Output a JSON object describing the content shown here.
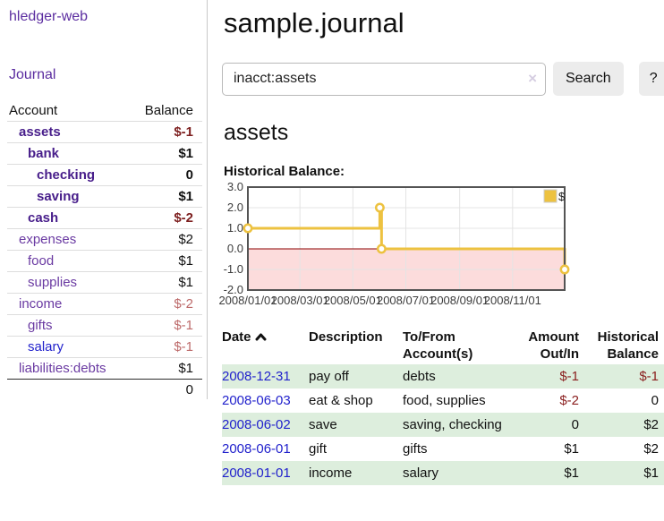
{
  "sidebar": {
    "brand": "hledger-web",
    "nav": {
      "journal_label": "Journal"
    },
    "accounts_table": {
      "headers": {
        "account": "Account",
        "balance": "Balance"
      },
      "rows": [
        {
          "name": "assets",
          "balance": "$-1",
          "indent": 1,
          "bold": true,
          "balance_style": "neg-strong"
        },
        {
          "name": "bank",
          "balance": "$1",
          "indent": 2,
          "bold": true,
          "balance_style": "pos"
        },
        {
          "name": "checking",
          "balance": "0",
          "indent": 3,
          "bold": true,
          "balance_style": "pos"
        },
        {
          "name": "saving",
          "balance": "$1",
          "indent": 3,
          "bold": true,
          "balance_style": "pos"
        },
        {
          "name": "cash",
          "balance": "$-2",
          "indent": 2,
          "bold": true,
          "balance_style": "neg-strong"
        },
        {
          "name": "expenses",
          "balance": "$2",
          "indent": 1,
          "bold": false,
          "balance_style": "pos"
        },
        {
          "name": "food",
          "balance": "$1",
          "indent": 2,
          "bold": false,
          "balance_style": "pos"
        },
        {
          "name": "supplies",
          "balance": "$1",
          "indent": 2,
          "bold": false,
          "balance_style": "pos"
        },
        {
          "name": "income",
          "balance": "$-2",
          "indent": 1,
          "bold": false,
          "balance_style": "neg"
        },
        {
          "name": "gifts",
          "balance": "$-1",
          "indent": 2,
          "bold": false,
          "balance_style": "neg"
        },
        {
          "name": "salary",
          "balance": "$-1",
          "indent": 2,
          "bold": false,
          "balance_style": "neg",
          "link_style": "unvisited"
        },
        {
          "name": "liabilities:debts",
          "balance": "$1",
          "indent": 1,
          "bold": false,
          "balance_style": "pos"
        }
      ],
      "total": "0"
    }
  },
  "header": {
    "title": "sample.journal"
  },
  "search": {
    "query": "inacct:assets",
    "clear_icon": "×",
    "search_label": "Search",
    "help_label": "?"
  },
  "account_page": {
    "heading": "assets",
    "chart_label": "Historical Balance:"
  },
  "chart_data": {
    "type": "line",
    "title": "Historical Balance:",
    "step": true,
    "series": [
      {
        "name": "$",
        "color": "#edc240",
        "points": [
          {
            "date": "2008/01/01",
            "value": 1.0
          },
          {
            "date": "2008/06/01",
            "value": 2.0
          },
          {
            "date": "2008/06/03",
            "value": 0.0
          },
          {
            "date": "2008/12/31",
            "value": -1.0
          }
        ]
      }
    ],
    "x_range": [
      "2008/01/01",
      "2008/12/31"
    ],
    "x_ticks": [
      "2008/01/01",
      "2008/03/01",
      "2008/05/01",
      "2008/07/01",
      "2008/09/01",
      "2008/11/01"
    ],
    "y_ticks": [
      "3.0",
      "2.0",
      "1.0",
      "0.0",
      "-1.0",
      "-2.0"
    ],
    "ylim": [
      -2,
      3
    ],
    "grid": true,
    "legend_position": "top-right",
    "legend_label": "$",
    "colors": {
      "series": "#edc240",
      "negative_region": "#fcdcdc",
      "zero_line": "#8b0000",
      "gridline": "#e4e4e4",
      "border": "#545454",
      "tick_text": "#3c3c3c"
    }
  },
  "register_table": {
    "headers": {
      "date": "Date",
      "description": "Description",
      "accounts": "To/From Account(s)",
      "amount": "Amount Out/In",
      "balance": "Historical Balance"
    },
    "rows": [
      {
        "date": "2008-12-31",
        "description": "pay off",
        "accounts": "debts",
        "amount": "$-1",
        "amount_negative": true,
        "balance": "$-1",
        "balance_negative": true
      },
      {
        "date": "2008-06-03",
        "description": "eat & shop",
        "accounts": "food, supplies",
        "amount": "$-2",
        "amount_negative": true,
        "balance": "0",
        "balance_negative": false
      },
      {
        "date": "2008-06-02",
        "description": "save",
        "accounts": "saving, checking",
        "amount": "0",
        "amount_negative": false,
        "balance": "$2",
        "balance_negative": false
      },
      {
        "date": "2008-06-01",
        "description": "gift",
        "accounts": "gifts",
        "amount": "$1",
        "amount_negative": false,
        "balance": "$2",
        "balance_negative": false
      },
      {
        "date": "2008-01-01",
        "description": "income",
        "accounts": "salary",
        "amount": "$1",
        "amount_negative": false,
        "balance": "$1",
        "balance_negative": false
      }
    ]
  },
  "colors": {
    "link_purple": "#5b2da0",
    "link_purple_bold": "#471d8a",
    "link_blue": "#2222cc",
    "negative_dark": "#7d1f1f",
    "negative_light": "#bd6a6a",
    "row_stripe_green": "#ddeedd"
  }
}
